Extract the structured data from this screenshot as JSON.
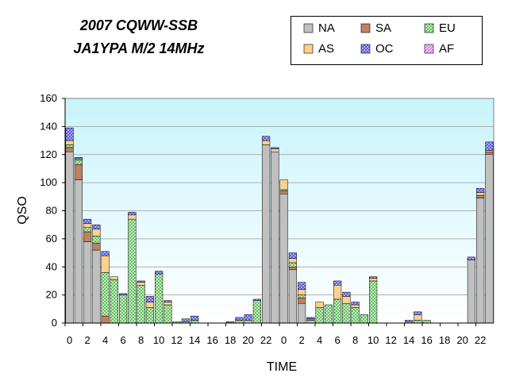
{
  "chart_data": {
    "type": "bar",
    "stacked": true,
    "title": [
      "2007 CQWW-SSB",
      "JA1YPA M/2   14MHz"
    ],
    "xlabel": "TIME",
    "ylabel": "QSO",
    "ylim": [
      0,
      160
    ],
    "yticks": [
      0,
      20,
      40,
      60,
      80,
      100,
      120,
      140,
      160
    ],
    "categories": [
      "0",
      "1",
      "2",
      "3",
      "4",
      "5",
      "6",
      "7",
      "8",
      "9",
      "10",
      "11",
      "12",
      "13",
      "14",
      "15",
      "16",
      "17",
      "18",
      "19",
      "20",
      "21",
      "22",
      "23",
      "0",
      "1",
      "2",
      "3",
      "4",
      "5",
      "6",
      "7",
      "8",
      "9",
      "10",
      "11",
      "12",
      "13",
      "14",
      "15",
      "16",
      "17",
      "18",
      "19",
      "20",
      "21",
      "22",
      "23"
    ],
    "xtick_labels": [
      "0",
      "2",
      "4",
      "6",
      "8",
      "10",
      "12",
      "14",
      "16",
      "18",
      "20",
      "22",
      "0",
      "2",
      "4",
      "6",
      "8",
      "10",
      "12",
      "14",
      "16",
      "18",
      "20",
      "22"
    ],
    "legend_position": "top-right",
    "series": [
      {
        "name": "NA",
        "color": "#c0c0c0",
        "values": [
          122,
          102,
          58,
          52,
          0,
          0,
          0,
          0,
          0,
          0,
          0,
          0,
          0,
          0,
          0,
          0,
          0,
          0,
          0,
          0,
          2,
          0,
          127,
          122,
          92,
          38,
          14,
          2,
          0,
          0,
          0,
          0,
          0,
          0,
          0,
          0,
          0,
          0,
          0,
          0,
          0,
          0,
          0,
          0,
          0,
          45,
          89,
          120
        ]
      },
      {
        "name": "SA",
        "color": "#c08060",
        "values": [
          3,
          11,
          7,
          5,
          5,
          0,
          0,
          0,
          0,
          0,
          0,
          0,
          0,
          0,
          0,
          0,
          0,
          0,
          1,
          0,
          0,
          0,
          0,
          0,
          2,
          2,
          4,
          1,
          0,
          0,
          0,
          0,
          0,
          0,
          0,
          0,
          0,
          0,
          0,
          0,
          0,
          0,
          0,
          0,
          0,
          0,
          2,
          2
        ]
      },
      {
        "name": "EU",
        "color": "#b8f0b0",
        "values": [
          2,
          3,
          3,
          5,
          31,
          31,
          20,
          74,
          27,
          11,
          35,
          13,
          1,
          1,
          2,
          0,
          0,
          0,
          0,
          2,
          0,
          16,
          0,
          0,
          1,
          3,
          2,
          0,
          11,
          13,
          17,
          14,
          11,
          6,
          30,
          0,
          0,
          0,
          1,
          2,
          2,
          0,
          0,
          0,
          0,
          0,
          0,
          0
        ]
      },
      {
        "name": "AS",
        "color": "#ffd090",
        "values": [
          3,
          1,
          3,
          5,
          12,
          2,
          0,
          3,
          2,
          4,
          0,
          2,
          0,
          0,
          0,
          0,
          0,
          0,
          0,
          0,
          0,
          0,
          3,
          2,
          7,
          3,
          4,
          0,
          4,
          0,
          10,
          5,
          2,
          0,
          2,
          0,
          0,
          0,
          0,
          4,
          0,
          0,
          0,
          0,
          0,
          0,
          2,
          1
        ]
      },
      {
        "name": "OC",
        "color": "#9090ff",
        "values": [
          9,
          1,
          3,
          3,
          3,
          0,
          1,
          2,
          1,
          4,
          2,
          1,
          0,
          2,
          3,
          0,
          0,
          0,
          0,
          2,
          4,
          1,
          3,
          1,
          0,
          4,
          5,
          1,
          0,
          0,
          3,
          3,
          2,
          0,
          1,
          0,
          0,
          0,
          1,
          2,
          0,
          0,
          0,
          0,
          0,
          2,
          3,
          6
        ]
      },
      {
        "name": "AF",
        "color": "#f0a0f0",
        "values": [
          0,
          0,
          0,
          0,
          0,
          0,
          0,
          0,
          0,
          0,
          0,
          0,
          0,
          0,
          0,
          0,
          0,
          0,
          0,
          0,
          0,
          0,
          0,
          0,
          0,
          0,
          0,
          0,
          0,
          0,
          0,
          0,
          0,
          0,
          0,
          0,
          0,
          0,
          0,
          0,
          0,
          0,
          0,
          0,
          0,
          0,
          0,
          0
        ]
      }
    ]
  }
}
